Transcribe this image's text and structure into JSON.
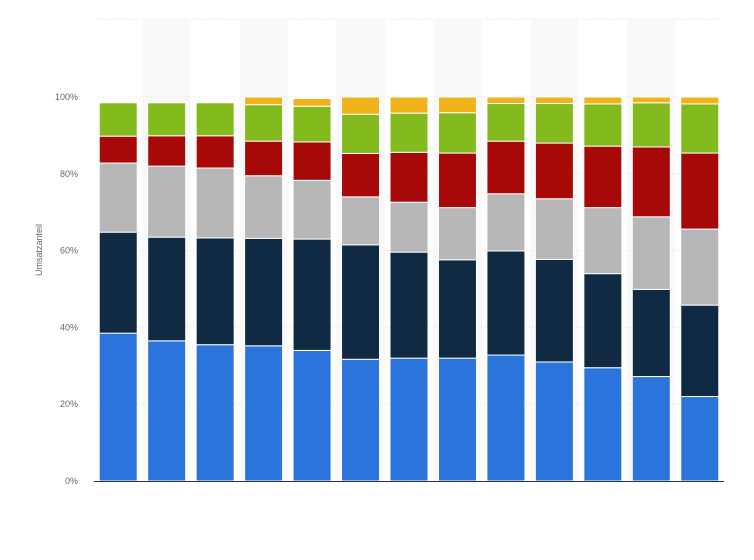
{
  "chart_data": {
    "type": "bar",
    "stacked": true,
    "title": "",
    "xlabel": "",
    "ylabel": "Umsatzanteil",
    "ylim": [
      0,
      100
    ],
    "yticks": [
      {
        "value": 0,
        "label": "0%"
      },
      {
        "value": 20,
        "label": "20%"
      },
      {
        "value": 40,
        "label": "40%"
      },
      {
        "value": 60,
        "label": "60%"
      },
      {
        "value": 80,
        "label": "80%"
      },
      {
        "value": 100,
        "label": "100%"
      }
    ],
    "grid": true,
    "legend": "none",
    "categories": [
      "",
      "",
      "",
      "",
      "",
      "",
      "",
      "",
      "",
      "",
      "",
      "",
      ""
    ],
    "series": [
      {
        "color": "#2a74dc",
        "values": [
          38.5,
          36.5,
          35.5,
          35.2,
          34.0,
          31.7,
          32.0,
          32.0,
          32.8,
          31.0,
          29.5,
          27.2,
          22.0
        ]
      },
      {
        "color": "#0f2a42",
        "values": [
          26.3,
          27.0,
          27.8,
          28.0,
          29.0,
          29.8,
          27.6,
          25.6,
          27.1,
          26.7,
          24.5,
          22.7,
          23.8
        ]
      },
      {
        "color": "#b7b7b7",
        "values": [
          18.0,
          18.5,
          18.2,
          16.3,
          15.3,
          12.5,
          13.0,
          13.6,
          14.9,
          15.8,
          17.2,
          18.9,
          19.8
        ]
      },
      {
        "color": "#a70808",
        "values": [
          7.0,
          7.9,
          8.4,
          9.0,
          10.0,
          11.3,
          13.0,
          14.2,
          13.7,
          14.5,
          16.0,
          18.2,
          19.8
        ]
      },
      {
        "color": "#83ba1e",
        "values": [
          8.7,
          8.6,
          8.6,
          9.5,
          9.3,
          10.2,
          10.2,
          10.5,
          9.8,
          10.3,
          11.0,
          11.5,
          12.8
        ]
      },
      {
        "color": "#f0b31b",
        "values": [
          0.0,
          0.0,
          0.0,
          2.0,
          2.0,
          4.5,
          4.2,
          4.1,
          1.7,
          1.7,
          1.8,
          1.5,
          1.8
        ]
      }
    ]
  }
}
